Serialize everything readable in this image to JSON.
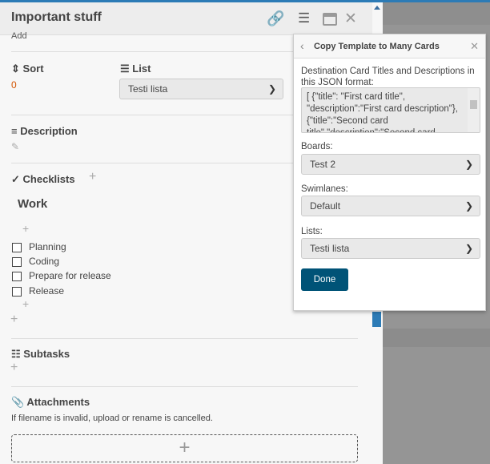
{
  "card": {
    "title": "Important stuff",
    "add_label": "Add",
    "sort": {
      "label": "Sort",
      "value": "0"
    },
    "list": {
      "label": "List",
      "value": "Testi lista"
    },
    "description": {
      "label": "Description"
    },
    "checklists": {
      "label": "Checklists",
      "lists": [
        {
          "title": "Work",
          "items": [
            "Planning",
            "Coding",
            "Prepare for release",
            "Release"
          ]
        }
      ]
    },
    "subtasks": {
      "label": "Subtasks"
    },
    "attachments": {
      "label": "Attachments",
      "note": "If filename is invalid, upload or rename is cancelled."
    }
  },
  "popup": {
    "title": "Copy Template to Many Cards",
    "json_label": "Destination Card Titles and Descriptions in this JSON format:",
    "json_value": "[ {\"title\": \"First card title\", \"description\":\"First card description\"}, {\"title\":\"Second card title\",\"description\":\"Second card description\"} ]",
    "boards_label": "Boards:",
    "boards_value": "Test 2",
    "swimlanes_label": "Swimlanes:",
    "swimlanes_value": "Default",
    "lists_label": "Lists:",
    "lists_value": "Testi lista",
    "done_label": "Done"
  },
  "colors": {
    "accent": "#2c7bb6",
    "done_button": "#005377"
  }
}
